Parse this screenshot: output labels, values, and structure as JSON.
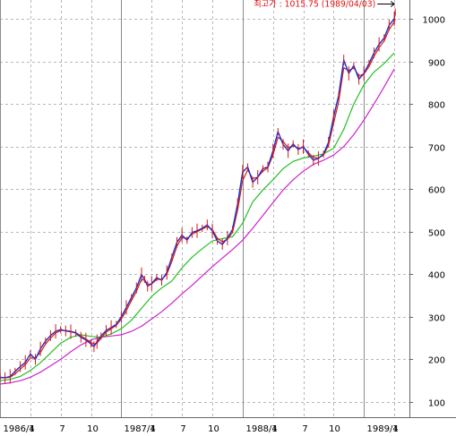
{
  "chart_data": {
    "type": "line",
    "title": "",
    "xlabel": "",
    "ylabel": "",
    "ylim": [
      80,
      1050
    ],
    "yticks": [
      100,
      200,
      300,
      400,
      500,
      600,
      700,
      800,
      900,
      1000
    ],
    "xticks": [
      {
        "label": "1986/1",
        "x": 0.0,
        "major": true
      },
      {
        "label": "4",
        "x": 3.0,
        "major": false
      },
      {
        "label": "7",
        "x": 6.0,
        "major": false
      },
      {
        "label": "10",
        "x": 9.0,
        "major": false
      },
      {
        "label": "1987/1",
        "x": 12.0,
        "major": true
      },
      {
        "label": "4",
        "x": 15.0,
        "major": false
      },
      {
        "label": "7",
        "x": 18.0,
        "major": false
      },
      {
        "label": "10",
        "x": 21.0,
        "major": false
      },
      {
        "label": "1988/1",
        "x": 24.0,
        "major": true
      },
      {
        "label": "4",
        "x": 27.0,
        "major": false
      },
      {
        "label": "7",
        "x": 30.0,
        "major": false
      },
      {
        "label": "10",
        "x": 33.0,
        "major": false
      },
      {
        "label": "1989/1",
        "x": 36.0,
        "major": true
      },
      {
        "label": "4",
        "x": 39.0,
        "major": false
      }
    ],
    "xlim": [
      0,
      40.5
    ],
    "grid": true,
    "annotation": {
      "text": "최고가 : 1015.75 (1989/04/03)",
      "x": 39.1,
      "y": 1015.75
    },
    "colors": {
      "price": "#1a2fd0",
      "price_accent": "#d21a1a",
      "ma_short": "#d21a1a",
      "ma_mid": "#22c022",
      "ma_long": "#cc22cc",
      "grid": "#b8b8b8",
      "annotation": "#e01010"
    },
    "series": [
      {
        "key": "price",
        "x": [
          0.0,
          0.5,
          1.0,
          1.5,
          2.0,
          2.5,
          3.0,
          3.5,
          4.0,
          4.5,
          5.0,
          5.5,
          6.0,
          6.5,
          7.0,
          7.5,
          8.0,
          8.5,
          9.0,
          9.3,
          9.6,
          10.0,
          10.5,
          11.0,
          11.5,
          12.0,
          12.5,
          13.0,
          13.5,
          14.0,
          14.3,
          14.6,
          15.0,
          15.5,
          16.0,
          16.5,
          17.0,
          17.5,
          18.0,
          18.5,
          19.0,
          19.5,
          20.0,
          20.5,
          21.0,
          21.5,
          22.0,
          22.5,
          23.0,
          23.5,
          24.0,
          24.5,
          25.0,
          25.5,
          26.0,
          26.5,
          27.0,
          27.5,
          28.0,
          28.5,
          29.0,
          29.5,
          30.0,
          30.5,
          31.0,
          31.5,
          32.0,
          32.5,
          33.0,
          33.5,
          34.0,
          34.5,
          35.0,
          35.5,
          36.0,
          36.5,
          37.0,
          37.5,
          38.0,
          38.5,
          39.0,
          39.1
        ],
        "values": [
          158,
          157,
          160,
          172,
          183,
          193,
          213,
          200,
          225,
          243,
          256,
          266,
          270,
          267,
          265,
          262,
          252,
          246,
          236,
          230,
          242,
          255,
          268,
          275,
          282,
          300,
          322,
          345,
          368,
          399,
          388,
          372,
          378,
          392,
          386,
          404,
          440,
          475,
          492,
          480,
          498,
          502,
          508,
          516,
          502,
          478,
          470,
          485,
          505,
          565,
          640,
          652,
          616,
          628,
          648,
          652,
          690,
          735,
          705,
          690,
          706,
          693,
          700,
          682,
          668,
          672,
          682,
          710,
          770,
          820,
          903,
          872,
          890,
          858,
          872,
          895,
          920,
          940,
          955,
          985,
          1000,
          1015.75
        ]
      },
      {
        "key": "ma_short",
        "x": [
          0.0,
          0.5,
          1.0,
          1.5,
          2.0,
          2.5,
          3.0,
          3.5,
          4.0,
          4.5,
          5.0,
          5.5,
          6.0,
          6.5,
          7.0,
          7.5,
          8.0,
          8.5,
          9.0,
          9.3,
          9.6,
          10.0,
          10.5,
          11.0,
          11.5,
          12.0,
          12.5,
          13.0,
          13.5,
          14.0,
          14.3,
          14.6,
          15.0,
          15.5,
          16.0,
          16.5,
          17.0,
          17.5,
          18.0,
          18.5,
          19.0,
          19.5,
          20.0,
          20.5,
          21.0,
          21.5,
          22.0,
          22.5,
          23.0,
          23.5,
          24.0,
          24.5,
          25.0,
          25.5,
          26.0,
          26.5,
          27.0,
          27.5,
          28.0,
          28.5,
          29.0,
          29.5,
          30.0,
          30.5,
          31.0,
          31.5,
          32.0,
          32.5,
          33.0,
          33.5,
          34.0,
          34.5,
          35.0,
          35.5,
          36.0,
          36.5,
          37.0,
          37.5,
          38.0,
          38.5,
          39.0,
          39.1
        ],
        "values": [
          157,
          157,
          158,
          166,
          177,
          188,
          203,
          204,
          216,
          236,
          250,
          262,
          268,
          268,
          266,
          263,
          255,
          248,
          240,
          236,
          238,
          250,
          264,
          272,
          280,
          295,
          315,
          338,
          360,
          388,
          386,
          377,
          377,
          388,
          388,
          400,
          430,
          466,
          486,
          484,
          494,
          500,
          506,
          512,
          505,
          485,
          476,
          482,
          498,
          550,
          620,
          645,
          625,
          628,
          642,
          650,
          680,
          722,
          712,
          697,
          702,
          696,
          698,
          686,
          674,
          673,
          680,
          703,
          755,
          805,
          885,
          878,
          885,
          866,
          870,
          888,
          912,
          932,
          948,
          975,
          993,
          1000
        ]
      },
      {
        "key": "ma_mid",
        "x": [
          0.0,
          1.0,
          2.0,
          3.0,
          4.0,
          5.0,
          6.0,
          7.0,
          8.0,
          9.0,
          10.0,
          11.0,
          12.0,
          13.0,
          14.0,
          15.0,
          16.0,
          17.0,
          18.0,
          19.0,
          20.0,
          21.0,
          22.0,
          23.0,
          24.0,
          25.0,
          26.0,
          27.0,
          28.0,
          29.0,
          30.0,
          31.0,
          32.0,
          33.0,
          34.0,
          35.0,
          36.0,
          37.0,
          38.0,
          39.0
        ],
        "values": [
          150,
          153,
          160,
          174,
          192,
          215,
          238,
          252,
          258,
          254,
          252,
          260,
          272,
          292,
          320,
          348,
          368,
          384,
          415,
          440,
          460,
          478,
          484,
          488,
          520,
          570,
          598,
          622,
          648,
          665,
          673,
          677,
          683,
          696,
          740,
          800,
          845,
          875,
          895,
          920
        ]
      },
      {
        "key": "ma_long",
        "x": [
          0.0,
          1.0,
          2.0,
          3.0,
          4.0,
          5.0,
          6.0,
          7.0,
          8.0,
          9.0,
          10.0,
          11.0,
          12.0,
          13.0,
          14.0,
          15.0,
          16.0,
          17.0,
          18.0,
          19.0,
          20.0,
          21.0,
          22.0,
          23.0,
          24.0,
          25.0,
          26.0,
          27.0,
          28.0,
          29.0,
          30.0,
          31.0,
          32.0,
          33.0,
          34.0,
          35.0,
          36.0,
          37.0,
          38.0,
          39.0
        ],
        "values": [
          142,
          145,
          150,
          158,
          170,
          185,
          200,
          218,
          234,
          246,
          252,
          255,
          258,
          266,
          278,
          295,
          312,
          332,
          354,
          374,
          396,
          418,
          438,
          458,
          480,
          508,
          538,
          568,
          598,
          622,
          642,
          658,
          668,
          680,
          700,
          728,
          762,
          800,
          840,
          882
        ]
      }
    ]
  }
}
